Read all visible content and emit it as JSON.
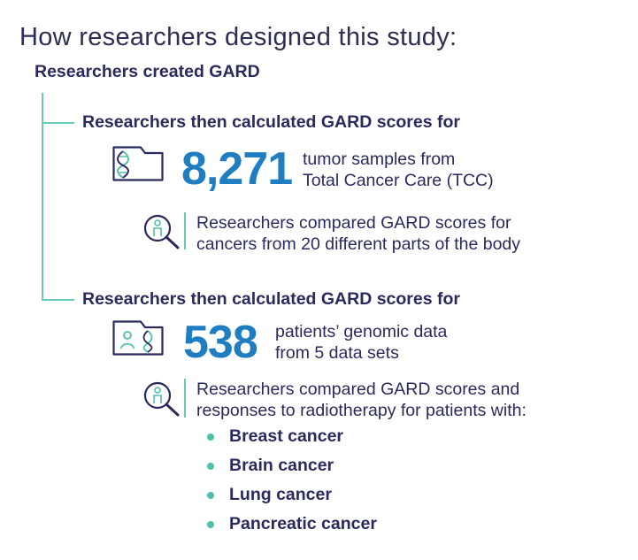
{
  "title": "How researchers designed this study:",
  "created": "Researchers created GARD",
  "branches": [
    {
      "heading": "Researchers then calculated GARD scores for",
      "number": "8,271",
      "desc": [
        "tumor samples from",
        "Total Cancer Care (TCC)"
      ],
      "icon": "dna-folder-icon",
      "compare": [
        "Researchers compared GARD scores for",
        "cancers from 20 different parts of the body"
      ]
    },
    {
      "heading": "Researchers then calculated GARD scores for",
      "number": "538",
      "desc": [
        "patients’ genomic data",
        "from 5 data sets"
      ],
      "icon": "patient-dna-folder-icon",
      "compare": [
        "Researchers compared GARD scores and",
        "responses to radiotherapy for patients with:"
      ],
      "cancers": [
        "Breast cancer",
        "Brain cancer",
        "Lung cancer",
        "Pancreatic cancer"
      ]
    }
  ],
  "colors": {
    "navy": "#2b2a5e",
    "blue": "#1f7ec2",
    "teal": "#66cbbb"
  }
}
